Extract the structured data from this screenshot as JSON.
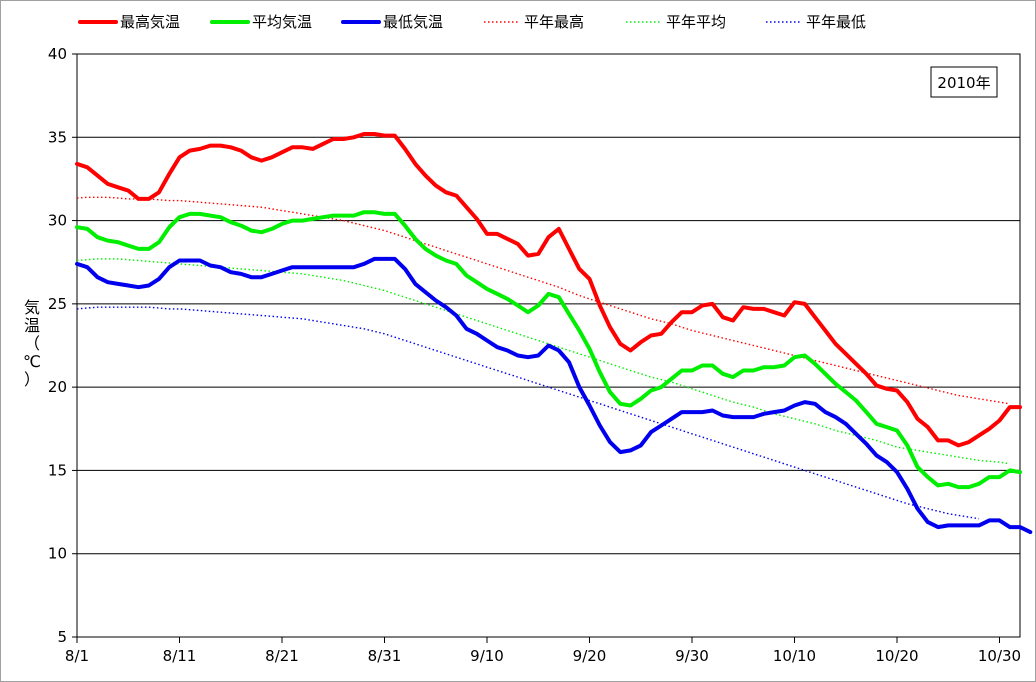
{
  "chart_data": {
    "type": "line",
    "annotation": "2010年",
    "ylabel": "気温（℃）",
    "xlabel": "",
    "ylim": [
      5,
      40
    ],
    "yticks": [
      5,
      10,
      15,
      20,
      25,
      30,
      35,
      40
    ],
    "xlim": [
      "8/1",
      "10/31"
    ],
    "xtick_labels": [
      "8/1",
      "8/11",
      "8/21",
      "8/31",
      "9/10",
      "9/20",
      "9/30",
      "10/10",
      "10/20",
      "10/30"
    ],
    "grid": "horizontal",
    "legend_position": "top",
    "series": [
      {
        "name": "最高気温",
        "color": "#ff0000",
        "style": "solid",
        "values": [
          33.4,
          33.2,
          32.7,
          32.2,
          32.0,
          31.8,
          31.3,
          31.3,
          31.7,
          32.8,
          33.8,
          34.2,
          34.3,
          34.5,
          34.5,
          34.4,
          34.2,
          33.8,
          33.6,
          33.8,
          34.1,
          34.4,
          34.4,
          34.3,
          34.6,
          34.9,
          34.9,
          35.0,
          35.2,
          35.2,
          35.1,
          35.1,
          34.3,
          33.4,
          32.7,
          32.1,
          31.7,
          31.5,
          30.8,
          30.1,
          29.2,
          29.2,
          28.9,
          28.6,
          27.9,
          28.0,
          29.0,
          29.5,
          28.3,
          27.1,
          26.5,
          24.9,
          23.6,
          22.6,
          22.2,
          22.7,
          23.1,
          23.2,
          23.9,
          24.5,
          24.5,
          24.9,
          25.0,
          24.2,
          24.0,
          24.8,
          24.7,
          24.7,
          24.5,
          24.3,
          25.1,
          25.0,
          24.2,
          23.4,
          22.6,
          22.0,
          21.4,
          20.8,
          20.1,
          19.9,
          19.8,
          19.1,
          18.1,
          17.6,
          16.8,
          16.8,
          16.5,
          16.7,
          17.1,
          17.5,
          18.0,
          18.8,
          18.8
        ]
      },
      {
        "name": "平均気温",
        "color": "#00ee00",
        "style": "solid",
        "values": [
          29.6,
          29.5,
          29.0,
          28.8,
          28.7,
          28.5,
          28.3,
          28.3,
          28.7,
          29.6,
          30.2,
          30.4,
          30.4,
          30.3,
          30.2,
          29.9,
          29.7,
          29.4,
          29.3,
          29.5,
          29.8,
          30.0,
          30.0,
          30.1,
          30.2,
          30.3,
          30.3,
          30.3,
          30.5,
          30.5,
          30.4,
          30.4,
          29.7,
          28.9,
          28.3,
          27.9,
          27.6,
          27.4,
          26.7,
          26.3,
          25.9,
          25.6,
          25.3,
          24.9,
          24.5,
          24.9,
          25.6,
          25.4,
          24.4,
          23.4,
          22.3,
          20.9,
          19.7,
          19.0,
          18.9,
          19.3,
          19.8,
          20.0,
          20.5,
          21.0,
          21.0,
          21.3,
          21.3,
          20.8,
          20.6,
          21.0,
          21.0,
          21.2,
          21.2,
          21.3,
          21.8,
          21.9,
          21.4,
          20.8,
          20.2,
          19.7,
          19.2,
          18.5,
          17.8,
          17.6,
          17.4,
          16.5,
          15.2,
          14.6,
          14.1,
          14.2,
          14.0,
          14.0,
          14.2,
          14.6,
          14.6,
          15.0,
          14.9
        ]
      },
      {
        "name": "最低気温",
        "color": "#0000ee",
        "style": "solid",
        "values": [
          27.4,
          27.2,
          26.6,
          26.3,
          26.2,
          26.1,
          26.0,
          26.1,
          26.5,
          27.2,
          27.6,
          27.6,
          27.6,
          27.3,
          27.2,
          26.9,
          26.8,
          26.6,
          26.6,
          26.8,
          27.0,
          27.2,
          27.2,
          27.2,
          27.2,
          27.2,
          27.2,
          27.2,
          27.4,
          27.7,
          27.7,
          27.7,
          27.1,
          26.2,
          25.7,
          25.2,
          24.8,
          24.3,
          23.5,
          23.2,
          22.8,
          22.4,
          22.2,
          21.9,
          21.8,
          21.9,
          22.5,
          22.2,
          21.5,
          20.0,
          18.9,
          17.7,
          16.7,
          16.1,
          16.2,
          16.5,
          17.3,
          17.7,
          18.1,
          18.5,
          18.5,
          18.5,
          18.6,
          18.3,
          18.2,
          18.2,
          18.2,
          18.4,
          18.5,
          18.6,
          18.9,
          19.1,
          19.0,
          18.5,
          18.2,
          17.8,
          17.2,
          16.6,
          15.9,
          15.5,
          14.9,
          13.9,
          12.7,
          11.9,
          11.6,
          11.7,
          11.7,
          11.7,
          11.7,
          12.0,
          12.0,
          11.6,
          11.6,
          11.3
        ]
      },
      {
        "name": "平年最高",
        "color": "#ff0000",
        "style": "dotted",
        "values": [
          31.35,
          31.4,
          31.4,
          31.4,
          31.35,
          31.3,
          31.3,
          31.3,
          31.25,
          31.2,
          31.2,
          31.15,
          31.1,
          31.05,
          31.0,
          30.95,
          30.9,
          30.85,
          30.8,
          30.7,
          30.6,
          30.5,
          30.4,
          30.3,
          30.2,
          30.1,
          30.0,
          29.85,
          29.7,
          29.55,
          29.4,
          29.2,
          29.0,
          28.8,
          28.6,
          28.4,
          28.2,
          28.0,
          27.8,
          27.6,
          27.4,
          27.2,
          27.0,
          26.8,
          26.6,
          26.4,
          26.2,
          26.0,
          25.75,
          25.5,
          25.3,
          25.1,
          24.9,
          24.7,
          24.5,
          24.3,
          24.1,
          23.95,
          23.8,
          23.6,
          23.4,
          23.25,
          23.1,
          22.95,
          22.8,
          22.65,
          22.5,
          22.35,
          22.2,
          22.05,
          21.9,
          21.75,
          21.6,
          21.45,
          21.3,
          21.15,
          21.0,
          20.85,
          20.7,
          20.55,
          20.4,
          20.25,
          20.1,
          19.95,
          19.8,
          19.65,
          19.5,
          19.4,
          19.3,
          19.2,
          19.1,
          19.0
        ]
      },
      {
        "name": "平年平均",
        "color": "#00ee00",
        "style": "dotted",
        "values": [
          27.6,
          27.65,
          27.7,
          27.7,
          27.7,
          27.65,
          27.6,
          27.55,
          27.5,
          27.45,
          27.4,
          27.35,
          27.3,
          27.25,
          27.2,
          27.15,
          27.1,
          27.05,
          27.0,
          26.95,
          26.9,
          26.85,
          26.8,
          26.7,
          26.6,
          26.5,
          26.4,
          26.25,
          26.1,
          25.95,
          25.8,
          25.6,
          25.4,
          25.2,
          25.0,
          24.8,
          24.6,
          24.4,
          24.2,
          24.0,
          23.8,
          23.6,
          23.4,
          23.2,
          23.0,
          22.8,
          22.6,
          22.4,
          22.2,
          22.0,
          21.8,
          21.6,
          21.4,
          21.2,
          21.0,
          20.8,
          20.6,
          20.45,
          20.3,
          20.1,
          19.9,
          19.7,
          19.5,
          19.3,
          19.1,
          18.95,
          18.8,
          18.6,
          18.4,
          18.25,
          18.1,
          17.95,
          17.8,
          17.6,
          17.4,
          17.25,
          17.1,
          16.95,
          16.8,
          16.6,
          16.4,
          16.3,
          16.2,
          16.1,
          16.0,
          15.9,
          15.8,
          15.7,
          15.6,
          15.55,
          15.5,
          15.4
        ]
      },
      {
        "name": "平年最低",
        "color": "#0000ee",
        "style": "dotted",
        "values": [
          24.7,
          24.75,
          24.8,
          24.8,
          24.8,
          24.8,
          24.8,
          24.8,
          24.75,
          24.7,
          24.7,
          24.65,
          24.6,
          24.55,
          24.5,
          24.45,
          24.4,
          24.35,
          24.3,
          24.25,
          24.2,
          24.15,
          24.1,
          24.0,
          23.9,
          23.8,
          23.7,
          23.6,
          23.5,
          23.35,
          23.2,
          23.0,
          22.8,
          22.6,
          22.4,
          22.2,
          22.0,
          21.8,
          21.6,
          21.4,
          21.2,
          21.0,
          20.8,
          20.6,
          20.4,
          20.2,
          20.0,
          19.8,
          19.6,
          19.4,
          19.2,
          19.0,
          18.8,
          18.6,
          18.4,
          18.2,
          18.0,
          17.8,
          17.6,
          17.4,
          17.2,
          17.0,
          16.8,
          16.6,
          16.4,
          16.2,
          16.0,
          15.8,
          15.6,
          15.4,
          15.2,
          15.0,
          14.8,
          14.6,
          14.4,
          14.2,
          14.0,
          13.8,
          13.6,
          13.4,
          13.2,
          13.0,
          12.85,
          12.7,
          12.55,
          12.4,
          12.3,
          12.2,
          12.1
        ]
      }
    ]
  }
}
